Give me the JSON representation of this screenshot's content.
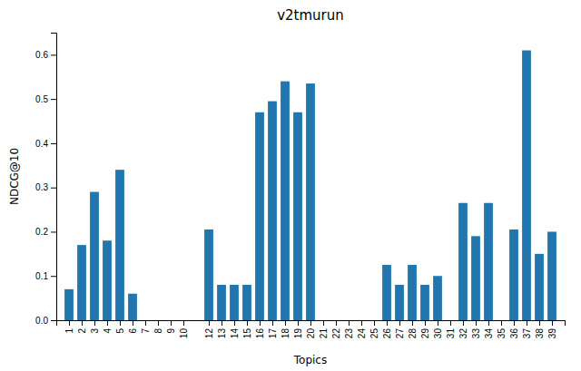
{
  "chart_data": {
    "type": "bar",
    "title": "v2tmurun",
    "xlabel": "Topics",
    "ylabel": "NDCG@10",
    "x": [
      1,
      2,
      3,
      4,
      5,
      6,
      7,
      8,
      9,
      10,
      12,
      13,
      14,
      15,
      16,
      17,
      18,
      19,
      20,
      21,
      22,
      23,
      24,
      25,
      26,
      27,
      28,
      29,
      30,
      31,
      32,
      33,
      34,
      35,
      36,
      37,
      38,
      39
    ],
    "values": [
      0.07,
      0.17,
      0.29,
      0.18,
      0.34,
      0.06,
      0.0,
      0.0,
      0.0,
      0.0,
      0.205,
      0.08,
      0.08,
      0.08,
      0.47,
      0.495,
      0.54,
      0.47,
      0.535,
      0.0,
      0.0,
      0.0,
      0.0,
      0.0,
      0.125,
      0.08,
      0.125,
      0.08,
      0.1,
      0.0,
      0.265,
      0.19,
      0.265,
      0.0,
      0.205,
      0.61,
      0.15,
      0.2
    ],
    "color": "#2176ae",
    "xlim": [
      0,
      40
    ],
    "xticks": [
      1,
      2,
      3,
      4,
      5,
      6,
      7,
      8,
      9,
      10,
      12,
      13,
      14,
      15,
      16,
      17,
      18,
      19,
      20,
      21,
      22,
      23,
      24,
      25,
      26,
      27,
      28,
      29,
      30,
      31,
      32,
      33,
      34,
      35,
      36,
      37,
      38,
      39
    ],
    "ylim": [
      0.0,
      0.65
    ],
    "yticks": [
      {
        "value": 0.0,
        "label": "0.0"
      },
      0.1,
      0.2,
      0.3,
      0.4,
      0.5,
      0.6
    ],
    "grid": false
  }
}
